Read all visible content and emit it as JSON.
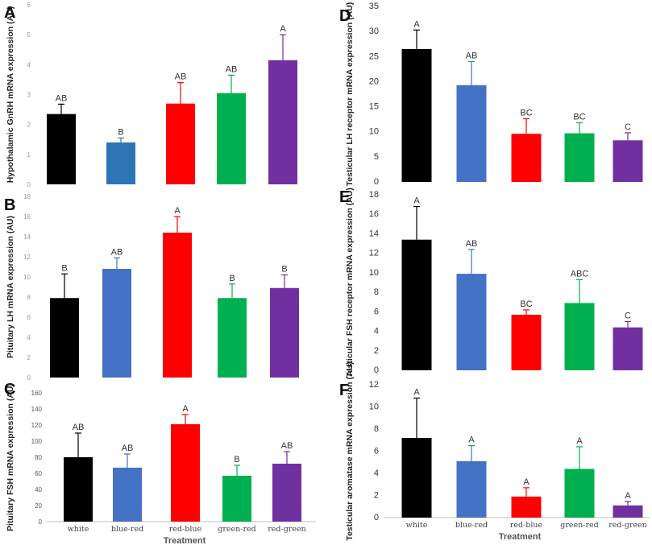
{
  "colors": [
    "#000000",
    "#4472C4",
    "#FF0000",
    "#00B050",
    "#7030A0"
  ],
  "colors_panel_a": [
    "#000000",
    "#2E75B6",
    "#FF0000",
    "#00B050",
    "#7030A0"
  ],
  "chart_data": [
    {
      "panel": "A",
      "type": "bar",
      "categories": [
        "white",
        "blue-red",
        "red-blue",
        "green-red",
        "red-green"
      ],
      "values": [
        2.35,
        1.4,
        2.7,
        3.05,
        4.15
      ],
      "errors": [
        0.33,
        0.15,
        0.7,
        0.6,
        0.85
      ],
      "labels": [
        "AB",
        "B",
        "AB",
        "AB",
        "A"
      ],
      "ylabel": "Hypothalamic GnRH mRNA expression (AU)",
      "ylim": [
        0,
        6
      ],
      "yticks": [
        "0",
        "1",
        "2",
        "3",
        "4",
        "5",
        "6"
      ]
    },
    {
      "panel": "B",
      "type": "bar",
      "categories": [
        "white",
        "blue-red",
        "red-blue",
        "green-red",
        "red-green"
      ],
      "values": [
        7.9,
        10.8,
        14.4,
        7.9,
        8.9
      ],
      "errors": [
        2.4,
        1.1,
        1.6,
        1.4,
        1.3
      ],
      "labels": [
        "B",
        "AB",
        "A",
        "B",
        "B"
      ],
      "ylabel": "Pituitary LH  mRNA expression (AU)",
      "ylim": [
        0,
        18
      ],
      "yticks": [
        "0",
        "2",
        "4",
        "6",
        "8",
        "10",
        "12",
        "14",
        "16",
        "18"
      ]
    },
    {
      "panel": "C",
      "type": "bar",
      "categories": [
        "white",
        "blue-red",
        "red-blue",
        "green-red",
        "red-green"
      ],
      "values": [
        80,
        67,
        121,
        57,
        72
      ],
      "errors": [
        30,
        17,
        12,
        13,
        15
      ],
      "labels": [
        "AB",
        "AB",
        "A",
        "B",
        "AB"
      ],
      "ylabel": "Pituitary FSH mRNA expression (AU)",
      "ylim": [
        0,
        160
      ],
      "yticks": [
        "0",
        "20",
        "40",
        "60",
        "80",
        "100",
        "120",
        "140",
        "160"
      ],
      "category_labels": [
        "white",
        "blue-red",
        "red-blue",
        "green-red",
        "red-green"
      ],
      "xlabel": "Treatment"
    },
    {
      "panel": "D",
      "type": "bar",
      "categories": [
        "white",
        "blue-red",
        "red-blue",
        "green-red",
        "red-green"
      ],
      "values": [
        26.5,
        19.3,
        9.6,
        9.7,
        8.3
      ],
      "errors": [
        3.8,
        4.7,
        3.0,
        2.1,
        1.5
      ],
      "labels": [
        "A",
        "AB",
        "BC",
        "BC",
        "C"
      ],
      "ylabel": "Testicular LH receptor mRNA expression (AU)",
      "ylim": [
        0,
        35
      ],
      "yticks": [
        "0",
        "5",
        "10",
        "15",
        "20",
        "25",
        "30",
        "35"
      ]
    },
    {
      "panel": "E",
      "type": "bar",
      "categories": [
        "white",
        "blue-red",
        "red-blue",
        "green-red",
        "red-green"
      ],
      "values": [
        13.4,
        9.9,
        5.7,
        6.9,
        4.4
      ],
      "errors": [
        3.4,
        2.5,
        0.5,
        2.4,
        0.6
      ],
      "labels": [
        "A",
        "AB",
        "BC",
        "ABC",
        "C"
      ],
      "ylabel": "Testicular FSH receptor mRNA expression (AU)",
      "ylim": [
        0,
        18
      ],
      "yticks": [
        "0",
        "2",
        "4",
        "6",
        "8",
        "10",
        "12",
        "14",
        "16",
        "18"
      ]
    },
    {
      "panel": "F",
      "type": "bar",
      "categories": [
        "white",
        "blue-red",
        "red-blue",
        "green-red",
        "red-green"
      ],
      "values": [
        7.2,
        5.1,
        1.9,
        4.4,
        1.1
      ],
      "errors": [
        3.6,
        1.4,
        0.8,
        2.0,
        0.35
      ],
      "labels": [
        "A",
        "A",
        "A",
        "A",
        "A"
      ],
      "ylabel": "Testicular aromatase mRNA expression (AU)",
      "ylim": [
        0,
        12
      ],
      "yticks": [
        "0",
        "2",
        "4",
        "6",
        "8",
        "10",
        "12"
      ],
      "category_labels": [
        "white",
        "blue-red",
        "red-blue",
        "green-red",
        "red-green"
      ],
      "xlabel": "Treatment"
    }
  ]
}
